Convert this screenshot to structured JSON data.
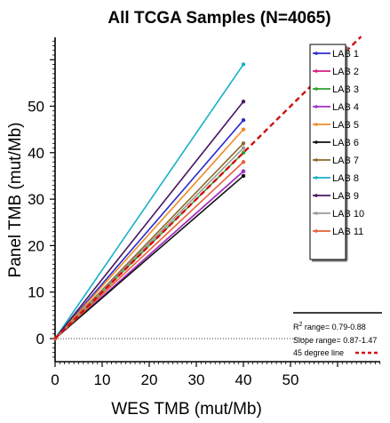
{
  "chart_data": {
    "type": "line",
    "title": "All TCGA Samples (N=4065)",
    "xlabel": "WES TMB (mut/Mb)",
    "ylabel": "Panel TMB (mut/Mb)",
    "x_ticks": [
      0,
      10,
      20,
      30,
      40,
      50
    ],
    "y_ticks": [
      0,
      10,
      20,
      30,
      40,
      50
    ],
    "xlim": [
      0,
      70
    ],
    "ylim": [
      -5,
      65
    ],
    "grid": false,
    "legend_position": "top-right",
    "series": [
      {
        "name": "LAB 1",
        "color": "#2b2bd0",
        "x": [
          0,
          40
        ],
        "y": [
          0,
          47
        ]
      },
      {
        "name": "LAB 2",
        "color": "#d02080",
        "x": [
          0,
          40
        ],
        "y": [
          0,
          36
        ]
      },
      {
        "name": "LAB 3",
        "color": "#2ea02e",
        "x": [
          0,
          40
        ],
        "y": [
          0,
          40
        ]
      },
      {
        "name": "LAB 4",
        "color": "#a030c8",
        "x": [
          0,
          40
        ],
        "y": [
          0,
          36
        ]
      },
      {
        "name": "LAB 5",
        "color": "#f08c28",
        "x": [
          0,
          40
        ],
        "y": [
          0,
          45
        ]
      },
      {
        "name": "LAB 6",
        "color": "#111111",
        "x": [
          0,
          40
        ],
        "y": [
          0,
          35
        ]
      },
      {
        "name": "LAB 7",
        "color": "#8b6a2a",
        "x": [
          0,
          40
        ],
        "y": [
          0,
          42
        ]
      },
      {
        "name": "LAB 8",
        "color": "#18b0c8",
        "x": [
          0,
          40
        ],
        "y": [
          0,
          59
        ]
      },
      {
        "name": "LAB 9",
        "color": "#4a1660",
        "x": [
          0,
          40
        ],
        "y": [
          0,
          51
        ]
      },
      {
        "name": "LAB 10",
        "color": "#9a9a9a",
        "x": [
          0,
          40
        ],
        "y": [
          0,
          41
        ]
      },
      {
        "name": "LAB 11",
        "color": "#e8603a",
        "x": [
          0,
          40
        ],
        "y": [
          0,
          38
        ]
      }
    ],
    "reference_line": {
      "name": "45 degree line",
      "color": "#d01010",
      "x": [
        0,
        65
      ],
      "y": [
        0,
        65
      ]
    },
    "annotations": {
      "r2_prefix": "R",
      "r2_sup": "2",
      "r2_text": " range= 0.79-0.88",
      "slope_text": "Slope range= 0.87-1.47",
      "ref_label": "45 degree line"
    }
  }
}
